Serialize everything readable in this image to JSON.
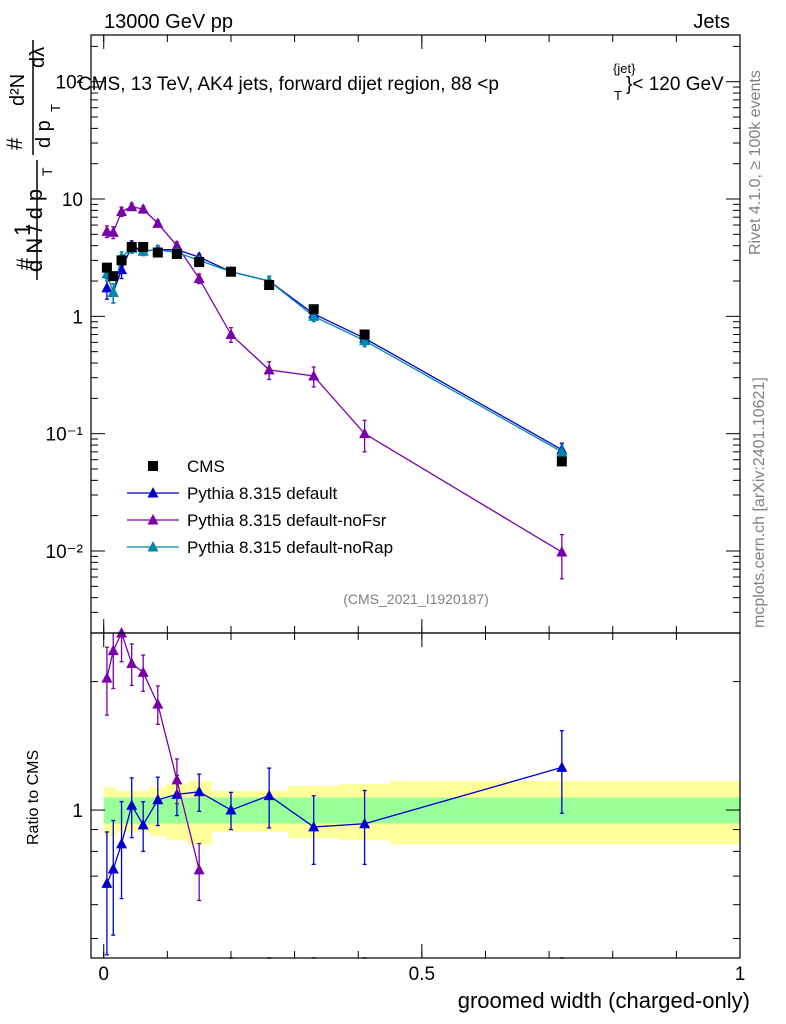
{
  "header": {
    "left": "13000 GeV pp",
    "right": "Jets",
    "title": "CMS, 13 TeV, AK4 jets, forward dijet region, 88 <p",
    "title_sup": "{jet}",
    "title_sub": "T",
    "title_end": "}< 120 GeV"
  },
  "side": {
    "rivet": "Rivet 4.1.0, ≥ 100k events",
    "mcplots": "mcplots.cern.ch [arXiv:2401.10621]"
  },
  "analysis_id": "(CMS_2021_I1920187)",
  "ylabel_main": {
    "hash1": "#",
    "one": "1",
    "dN": "d N / d p",
    "dN_sub": "T",
    "hash2": "#",
    "d2N": "d²N",
    "dp": "d p",
    "dp_sub": "T",
    "dlambda": "dλ"
  },
  "ylabel_ratio": "Ratio to CMS",
  "xlabel": "groomed width (charged-only)",
  "ticks_main": [
    "10⁻²",
    "10⁻¹",
    "1",
    "10",
    "10²"
  ],
  "ticks_ratio": [
    "1"
  ],
  "ticks_x": [
    "0",
    "0.5",
    "1"
  ],
  "legend": [
    {
      "label": "CMS"
    },
    {
      "label": "Pythia 8.315 default"
    },
    {
      "label": "Pythia 8.315 default-noFsr"
    },
    {
      "label": "Pythia 8.315 default-noRap"
    }
  ],
  "colors": {
    "cms": "#000000",
    "default": "#0000cc",
    "noFsr": "#7a00aa",
    "noRap": "#0088aa",
    "band_inner": "#99ff99",
    "band_outer": "#ffff99"
  },
  "chart_data": {
    "type": "scatter",
    "xscale": "linear",
    "yscale": "log",
    "xlim": [
      -0.02,
      1.0
    ],
    "ylim": [
      0.002,
      250
    ],
    "ratio_ylim": [
      0.45,
      2.6
    ],
    "x": [
      0.005,
      0.015,
      0.028,
      0.044,
      0.062,
      0.085,
      0.115,
      0.15,
      0.2,
      0.26,
      0.33,
      0.41,
      0.72
    ],
    "bin_edges": [
      0,
      0.01,
      0.02,
      0.036,
      0.052,
      0.072,
      0.098,
      0.132,
      0.17,
      0.23,
      0.29,
      0.37,
      0.45,
      1.0
    ],
    "cms": {
      "name": "CMS",
      "values": [
        2.6,
        2.2,
        3.0,
        3.9,
        3.9,
        3.5,
        3.4,
        2.9,
        2.4,
        1.85,
        1.15,
        0.7,
        0.058
      ],
      "band_inner": [
        0.07,
        0.07,
        0.07,
        0.07,
        0.07,
        0.07,
        0.07,
        0.07,
        0.07,
        0.07,
        0.07,
        0.07,
        0.07
      ],
      "band_outer": [
        0.13,
        0.13,
        0.11,
        0.11,
        0.11,
        0.13,
        0.15,
        0.17,
        0.11,
        0.11,
        0.14,
        0.15,
        0.17
      ]
    },
    "series": [
      {
        "name": "Pythia 8.315 default",
        "values": [
          1.75,
          1.6,
          2.5,
          4.0,
          3.6,
          3.7,
          3.7,
          3.2,
          2.4,
          2.0,
          1.05,
          0.65,
          0.073
        ],
        "err": [
          0.35,
          0.3,
          0.4,
          0.4,
          0.3,
          0.3,
          0.25,
          0.2,
          0.15,
          0.2,
          0.12,
          0.08,
          0.01
        ]
      },
      {
        "name": "Pythia 8.315 default-noFsr",
        "values": [
          5.3,
          5.2,
          7.8,
          8.6,
          8.2,
          6.2,
          4.0,
          2.1,
          0.7,
          0.35,
          0.31,
          0.1,
          0.0098
        ],
        "err": [
          0.6,
          0.6,
          0.7,
          0.6,
          0.5,
          0.4,
          0.3,
          0.2,
          0.1,
          0.06,
          0.06,
          0.03,
          0.004
        ]
      },
      {
        "name": "Pythia 8.315 default-noRap",
        "values": [
          2.3,
          1.6,
          3.2,
          3.8,
          3.6,
          3.7,
          3.5,
          3.0,
          2.4,
          2.0,
          1.0,
          0.62,
          0.07
        ],
        "err": [
          0.3,
          0.3,
          0.35,
          0.35,
          0.3,
          0.3,
          0.25,
          0.2,
          0.15,
          0.2,
          0.1,
          0.07,
          0.01
        ]
      }
    ]
  }
}
